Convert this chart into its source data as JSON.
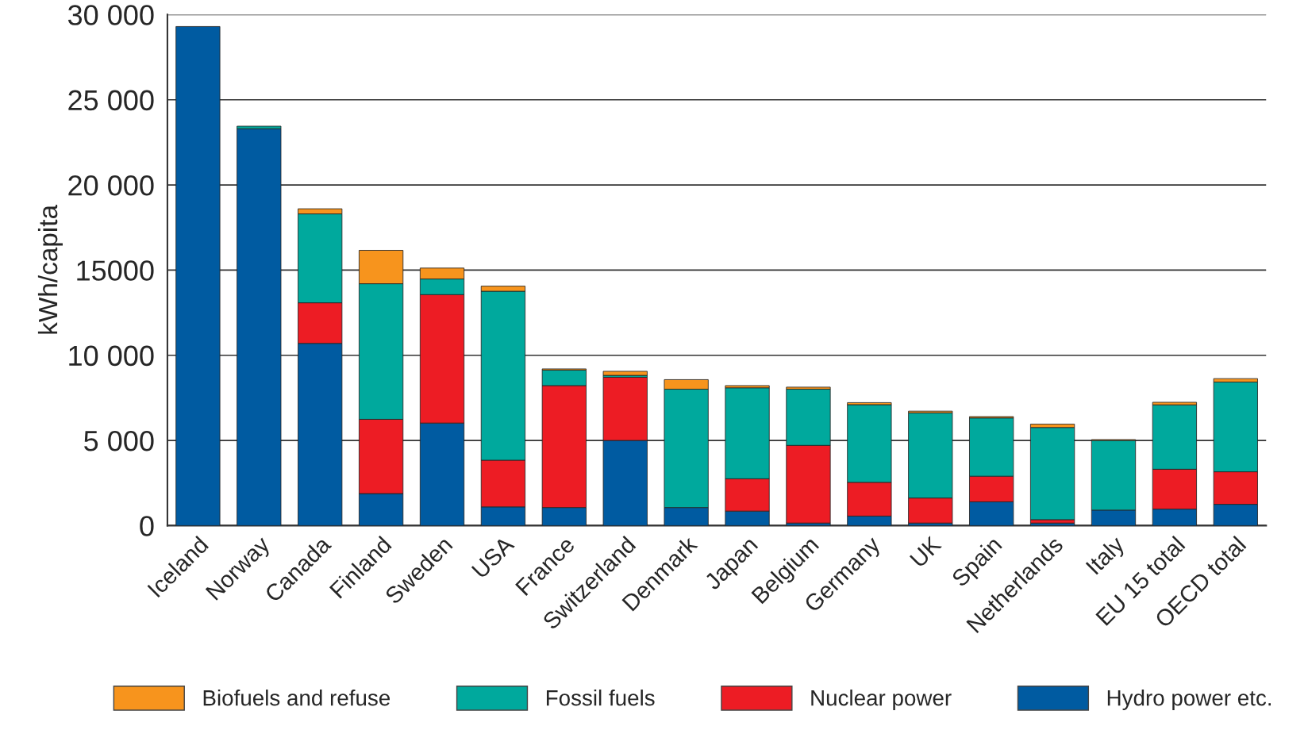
{
  "chart_data": {
    "type": "bar",
    "stacked": true,
    "ylabel": "kWh/capita",
    "categories": [
      "Iceland",
      "Norway",
      "Canada",
      "Finland",
      "Sweden",
      "USA",
      "France",
      "Switzerland",
      "Denmark",
      "Japan",
      "Belgium",
      "Germany",
      "UK",
      "Spain",
      "Netherlands",
      "Italy",
      "EU 15 total",
      "OECD total"
    ],
    "series": [
      {
        "name": "Hydro power etc.",
        "color": "#005ba1",
        "values": [
          29300,
          23300,
          10700,
          1880,
          6020,
          1100,
          1060,
          5000,
          1060,
          850,
          150,
          560,
          150,
          1400,
          150,
          910,
          970,
          1250
        ]
      },
      {
        "name": "Nuclear power",
        "color": "#ed1c24",
        "values": [
          null,
          null,
          2380,
          4360,
          7540,
          2740,
          7160,
          3710,
          null,
          1900,
          4560,
          1980,
          1470,
          1500,
          200,
          null,
          2340,
          1910
        ]
      },
      {
        "name": "Fossil fuels",
        "color": "#00a99d",
        "values": [
          null,
          150,
          5220,
          7960,
          920,
          9920,
          910,
          110,
          6950,
          5340,
          3300,
          4560,
          5000,
          3420,
          5410,
          4090,
          3780,
          5270
        ]
      },
      {
        "name": "Biofuels and refuse",
        "color": "#f7941d",
        "values": [
          null,
          null,
          300,
          1960,
          640,
          300,
          70,
          240,
          560,
          130,
          120,
          120,
          100,
          80,
          200,
          50,
          150,
          200
        ]
      }
    ],
    "ylim": [
      0,
      30000
    ],
    "yticks": [
      {
        "value": 0,
        "label": "0"
      },
      {
        "value": 5000,
        "label": "5 000"
      },
      {
        "value": 10000,
        "label": "10 000"
      },
      {
        "value": 15000,
        "label": "15000"
      },
      {
        "value": 20000,
        "label": "20 000"
      },
      {
        "value": 25000,
        "label": "25 000"
      },
      {
        "value": 30000,
        "label": "30 000"
      }
    ],
    "grid": "y",
    "legend": "bottom"
  }
}
